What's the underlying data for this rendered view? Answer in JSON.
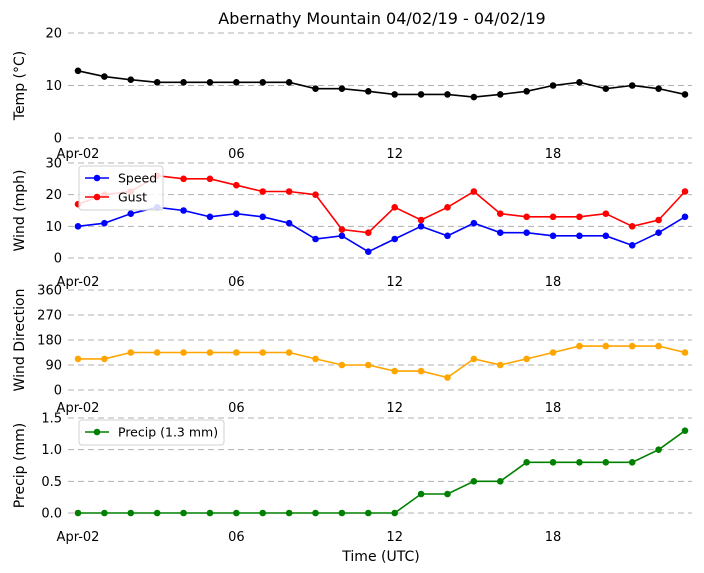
{
  "title": "Abernathy Mountain 04/02/19 - 04/02/19",
  "xlabel": "Time (UTC)",
  "x_tick_labels": [
    "Apr-02",
    "06",
    "12",
    "18"
  ],
  "colors": {
    "temp": "#000000",
    "speed": "#0000ff",
    "gust": "#ff0000",
    "direction": "#ffa500",
    "precip": "#008000",
    "grid": "#b0b0b0"
  },
  "chart_data": [
    {
      "type": "line",
      "ylabel": "Temp (°C)",
      "x": [
        "00:00",
        "01:00",
        "02:00",
        "03:00",
        "04:00",
        "05:00",
        "06:00",
        "07:00",
        "08:00",
        "09:00",
        "10:00",
        "11:00",
        "12:00",
        "13:00",
        "14:00",
        "15:00",
        "16:00",
        "17:00",
        "18:00",
        "19:00",
        "20:00",
        "21:00",
        "22:00",
        "23:00"
      ],
      "ylim": [
        0,
        20
      ],
      "yticks": [
        "0",
        "10",
        "20"
      ],
      "ytick_values": [
        0,
        10,
        20
      ],
      "grid": true,
      "legend": null,
      "series": [
        {
          "values": [
            12.8,
            11.7,
            11.1,
            10.6,
            10.6,
            10.6,
            10.6,
            10.6,
            10.6,
            9.4,
            9.4,
            8.9,
            8.3,
            8.3,
            8.3,
            7.8,
            8.3,
            8.9,
            10.0,
            10.6,
            9.4,
            10.0,
            9.4,
            8.3
          ]
        }
      ]
    },
    {
      "type": "line",
      "ylabel": "Wind (mph)",
      "x": [
        "00:00",
        "01:00",
        "02:00",
        "03:00",
        "04:00",
        "05:00",
        "06:00",
        "07:00",
        "08:00",
        "09:00",
        "10:00",
        "11:00",
        "12:00",
        "13:00",
        "14:00",
        "15:00",
        "16:00",
        "17:00",
        "18:00",
        "19:00",
        "20:00",
        "21:00",
        "22:00",
        "23:00"
      ],
      "ylim": [
        0,
        30
      ],
      "yticks": [
        "0",
        "10",
        "20",
        "30"
      ],
      "ytick_values": [
        0,
        10,
        20,
        30
      ],
      "grid": true,
      "legend": "top-left",
      "series": [
        {
          "name": "Speed",
          "values": [
            10,
            11,
            14,
            16,
            15,
            13,
            14,
            13,
            11,
            6,
            7,
            2,
            6,
            10,
            7,
            11,
            8,
            8,
            7,
            7,
            7,
            4,
            8,
            13
          ]
        },
        {
          "name": "Gust",
          "values": [
            17,
            20,
            21,
            26,
            25,
            25,
            23,
            21,
            21,
            20,
            9,
            8,
            16,
            12,
            16,
            21,
            14,
            13,
            13,
            13,
            14,
            10,
            12,
            21
          ]
        }
      ]
    },
    {
      "type": "line",
      "ylabel": "Wind Direction",
      "x": [
        "00:00",
        "01:00",
        "02:00",
        "03:00",
        "04:00",
        "05:00",
        "06:00",
        "07:00",
        "08:00",
        "09:00",
        "10:00",
        "11:00",
        "12:00",
        "13:00",
        "14:00",
        "15:00",
        "16:00",
        "17:00",
        "18:00",
        "19:00",
        "20:00",
        "21:00",
        "22:00",
        "23:00"
      ],
      "ylim": [
        0,
        360
      ],
      "yticks": [
        "0",
        "90",
        "180",
        "270",
        "360"
      ],
      "ytick_values": [
        0,
        90,
        180,
        270,
        360
      ],
      "grid": true,
      "legend": null,
      "series": [
        {
          "values": [
            112,
            112,
            135,
            135,
            135,
            135,
            135,
            135,
            135,
            112,
            90,
            90,
            68,
            68,
            45,
            112,
            90,
            112,
            135,
            158,
            158,
            158,
            158,
            135
          ]
        }
      ]
    },
    {
      "type": "line",
      "ylabel": "Precip (mm)",
      "x": [
        "00:00",
        "01:00",
        "02:00",
        "03:00",
        "04:00",
        "05:00",
        "06:00",
        "07:00",
        "08:00",
        "09:00",
        "10:00",
        "11:00",
        "12:00",
        "13:00",
        "14:00",
        "15:00",
        "16:00",
        "17:00",
        "18:00",
        "19:00",
        "20:00",
        "21:00",
        "22:00",
        "23:00"
      ],
      "ylim": [
        0,
        1.5
      ],
      "yticks": [
        "0.0",
        "0.5",
        "1.0",
        "1.5"
      ],
      "ytick_values": [
        0,
        0.5,
        1.0,
        1.5
      ],
      "grid": true,
      "legend": "top-left",
      "series": [
        {
          "name": "Precip (1.3 mm)",
          "values": [
            0,
            0,
            0,
            0,
            0,
            0,
            0,
            0,
            0,
            0,
            0,
            0,
            0,
            0.3,
            0.3,
            0.5,
            0.5,
            0.8,
            0.8,
            0.8,
            0.8,
            0.8,
            1.0,
            1.3
          ]
        }
      ]
    }
  ]
}
